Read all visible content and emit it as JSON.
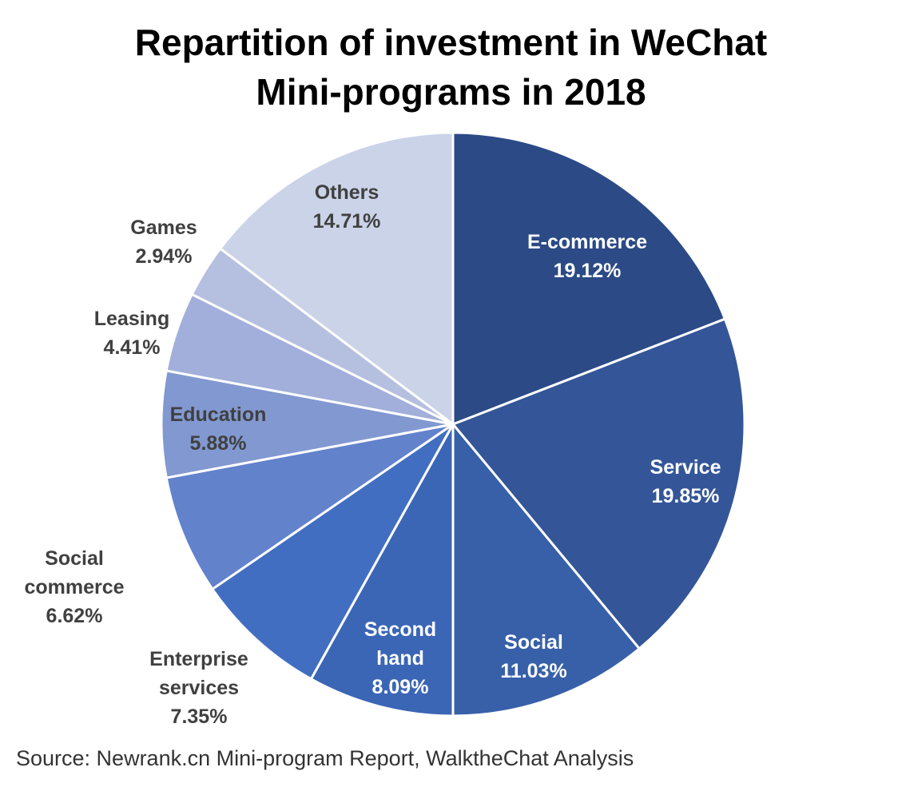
{
  "title_lines": [
    "Repartition of investment in WeChat",
    "Mini-programs in 2018"
  ],
  "source": "Source: Newrank.cn Mini-program Report, WalktheChat Analysis",
  "chart_data": {
    "type": "pie",
    "title": "Repartition of investment in WeChat Mini-programs in 2018",
    "start": "12 o'clock",
    "direction": "clockwise",
    "unit": "%",
    "slices": [
      {
        "label": [
          "E-commerce"
        ],
        "value": 19.12,
        "value_text": "19.12%",
        "color": "#2B4A86",
        "label_color": "#ffffff"
      },
      {
        "label": [
          "Service"
        ],
        "value": 19.85,
        "value_text": "19.85%",
        "color": "#345698",
        "label_color": "#ffffff"
      },
      {
        "label": [
          "Social"
        ],
        "value": 11.03,
        "value_text": "11.03%",
        "color": "#3860A9",
        "label_color": "#ffffff"
      },
      {
        "label": [
          "Second",
          "hand"
        ],
        "value": 8.09,
        "value_text": "8.09%",
        "color": "#3B66B6",
        "label_color": "#ffffff"
      },
      {
        "label": [
          "Enterprise",
          "services"
        ],
        "value": 7.35,
        "value_text": "7.35%",
        "color": "#426EC2",
        "label_color": "#404040"
      },
      {
        "label": [
          "Social",
          "commerce"
        ],
        "value": 6.62,
        "value_text": "6.62%",
        "color": "#6382CC",
        "label_color": "#404040"
      },
      {
        "label": [
          "Education"
        ],
        "value": 5.88,
        "value_text": "5.88%",
        "color": "#8298D1",
        "label_color": "#404040"
      },
      {
        "label": [
          "Leasing"
        ],
        "value": 4.41,
        "value_text": "4.41%",
        "color": "#A1AFDA",
        "label_color": "#404040"
      },
      {
        "label": [
          "Games"
        ],
        "value": 2.94,
        "value_text": "2.94%",
        "color": "#B5C0E0",
        "label_color": "#404040"
      },
      {
        "label": [
          "Others"
        ],
        "value": 14.71,
        "value_text": "14.71%",
        "color": "#CBD3E8",
        "label_color": "#404040"
      }
    ]
  }
}
